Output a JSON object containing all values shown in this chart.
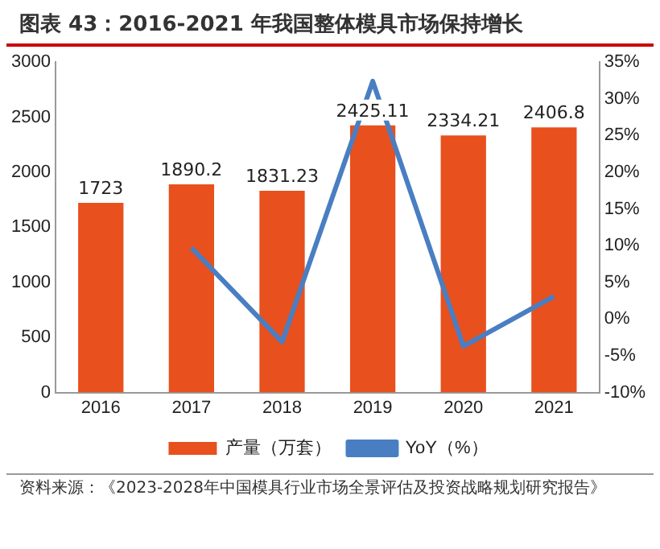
{
  "chart_data": {
    "type": "bar",
    "title": "图表 43：2016-2021 年我国整体模具市场保持增长",
    "categories": [
      "2016",
      "2017",
      "2018",
      "2019",
      "2020",
      "2021"
    ],
    "series": [
      {
        "name": "产量（万套）",
        "color": "#e8501e",
        "values": [
          1723,
          1890.2,
          1831.23,
          2425.11,
          2334.21,
          2406.8
        ]
      },
      {
        "name": "YoY（%）",
        "type": "line",
        "axis": "y2",
        "color": "#4a7ec2",
        "values": [
          null,
          9.7,
          -3.1,
          32.4,
          -3.7,
          3.1
        ]
      }
    ],
    "ylim": [
      0,
      3000
    ],
    "yticks": [
      0,
      500,
      1000,
      1500,
      2000,
      2500,
      3000
    ],
    "y2lim": [
      -10,
      35
    ],
    "y2ticks": [
      {
        "value": -10,
        "label": "-10%"
      },
      {
        "value": -5,
        "label": "-5%"
      },
      {
        "value": 0,
        "label": "0%"
      },
      {
        "value": 5,
        "label": "5%"
      },
      {
        "value": 10,
        "label": "10%"
      },
      {
        "value": 15,
        "label": "15%"
      },
      {
        "value": 20,
        "label": "20%"
      },
      {
        "value": 25,
        "label": "25%"
      },
      {
        "value": 30,
        "label": "30%"
      },
      {
        "value": 35,
        "label": "35%"
      }
    ],
    "value_labels": [
      "1723",
      "1890.2",
      "1831.23",
      "2425.11",
      "2334.21",
      "2406.8"
    ],
    "marker": "none",
    "legend": "bottom",
    "grid": false,
    "annotations": [
      "资料来源：《2023-2028年中国模具行业市场全景评估及投资战略规划研究报告》"
    ]
  }
}
